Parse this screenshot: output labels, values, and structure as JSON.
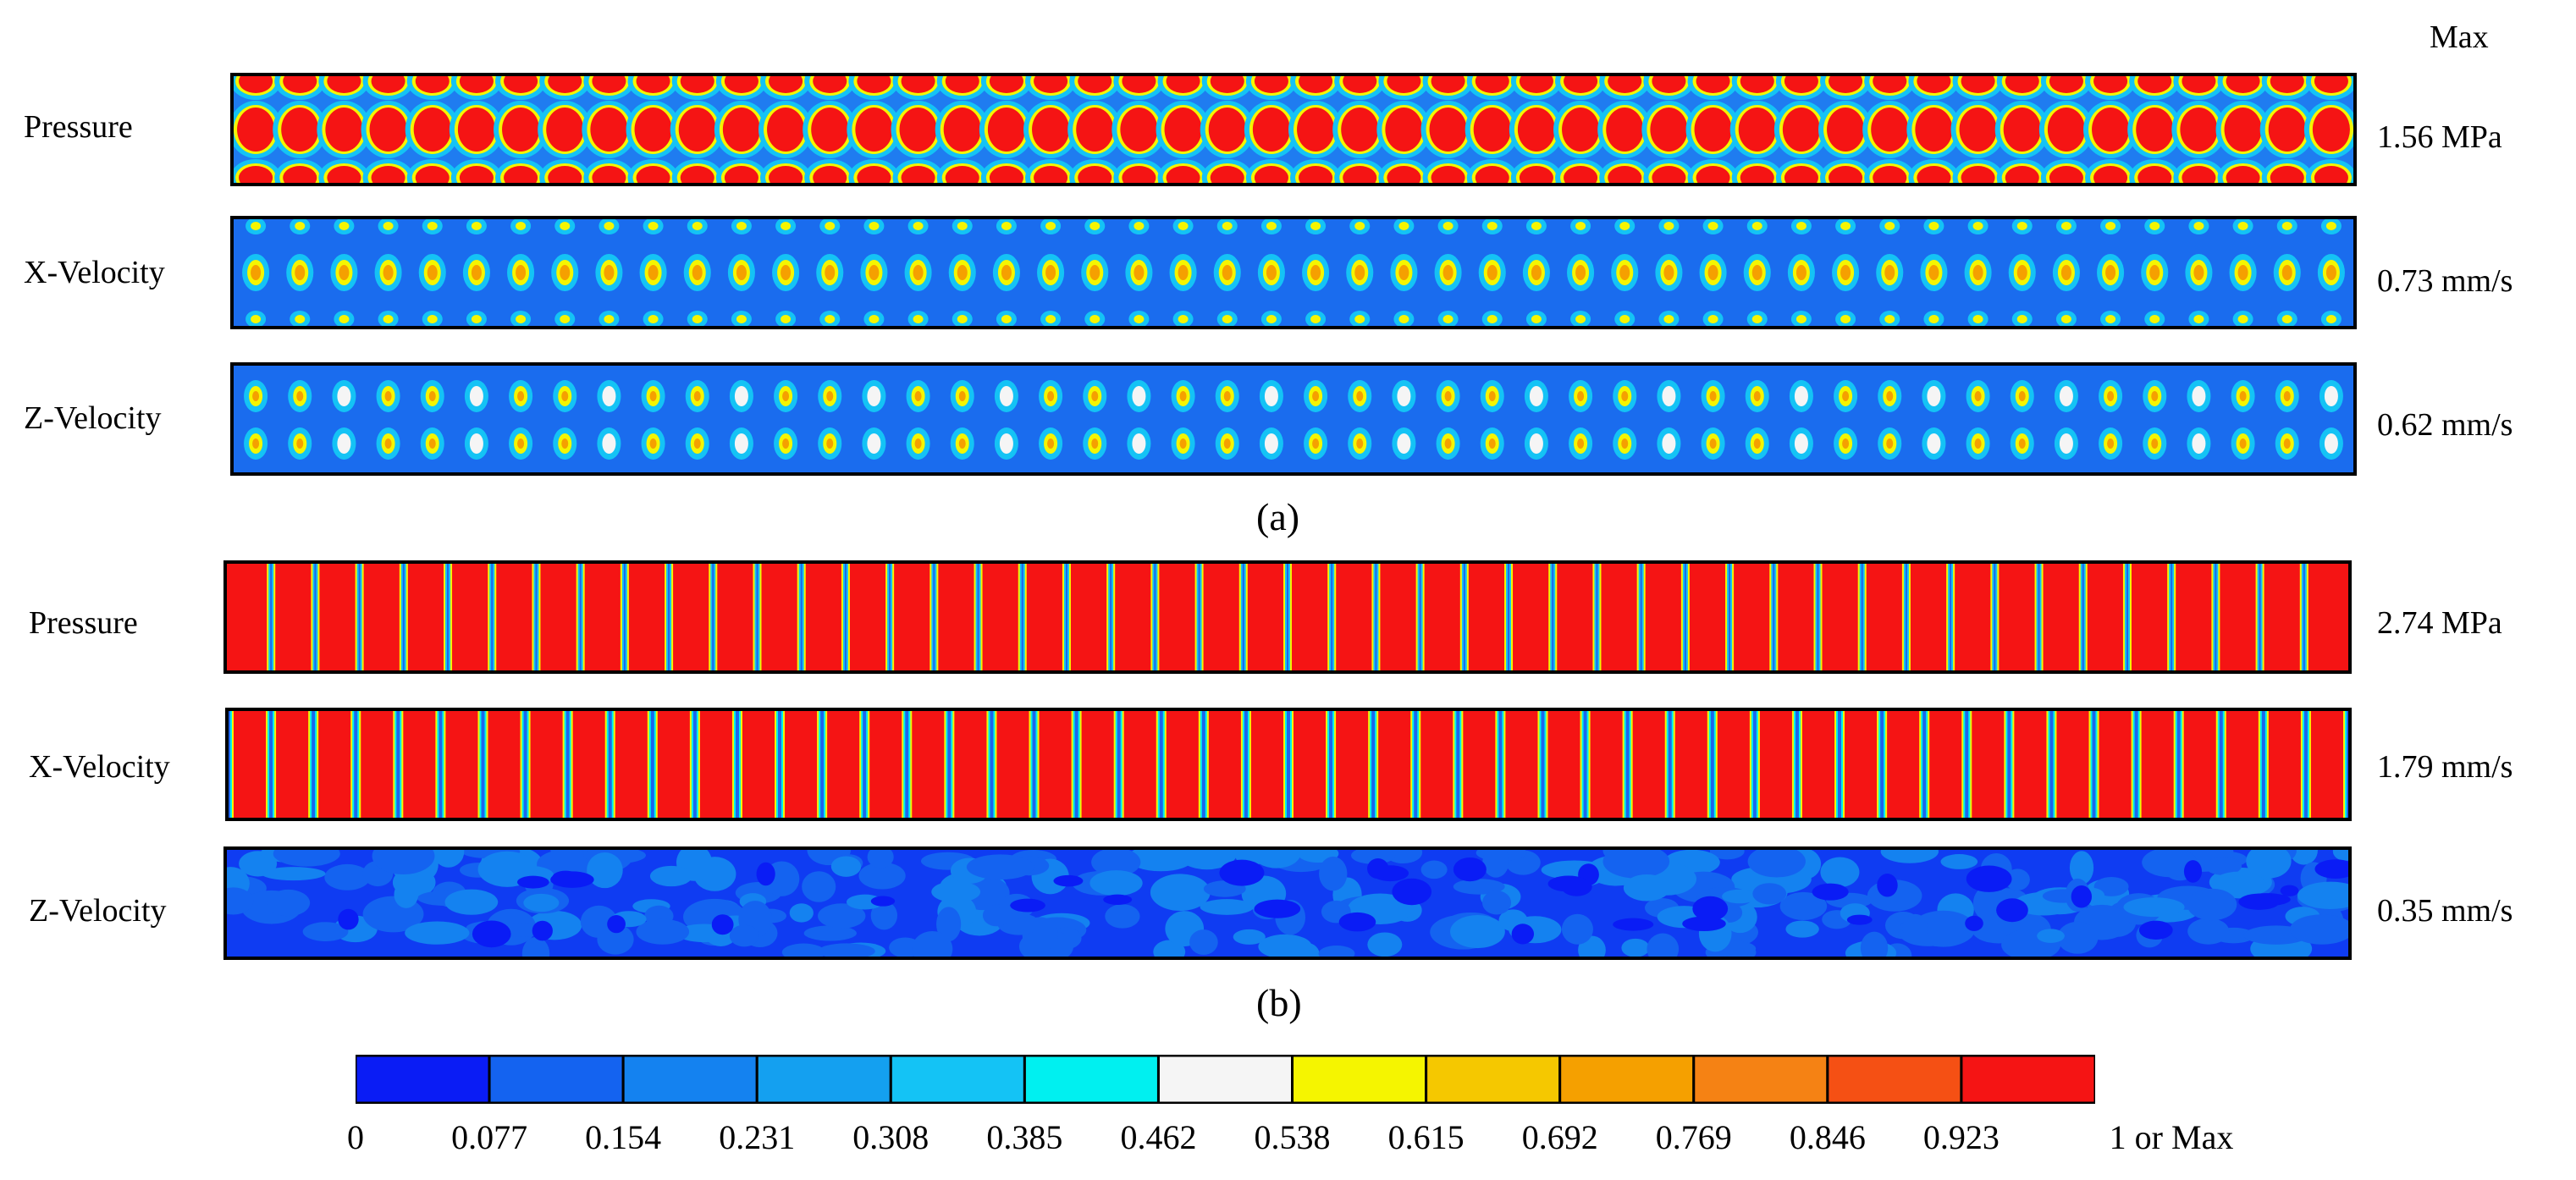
{
  "header": {
    "max_label": "Max"
  },
  "panels": [
    {
      "caption": "(a)",
      "rows": [
        {
          "label": "Pressure",
          "max": "1.56 MPa",
          "kind": "a-pressure"
        },
        {
          "label": "X-Velocity",
          "max": "0.73 mm/s",
          "kind": "a-xvel"
        },
        {
          "label": "Z-Velocity",
          "max": "0.62 mm/s",
          "kind": "a-zvel"
        }
      ]
    },
    {
      "caption": "(b)",
      "rows": [
        {
          "label": "Pressure",
          "max": "2.74 MPa",
          "kind": "b-pressure"
        },
        {
          "label": "X-Velocity",
          "max": "1.79 mm/s",
          "kind": "b-xvel"
        },
        {
          "label": "Z-Velocity",
          "max": "0.35 mm/s",
          "kind": "b-zvel"
        }
      ]
    }
  ],
  "colorbar": {
    "colors": [
      "#0a1cf5",
      "#1463f0",
      "#1482f0",
      "#14a0f0",
      "#14c3f5",
      "#00f0f0",
      "#f5f5f5",
      "#f5f500",
      "#f5c800",
      "#f5a000",
      "#f58214",
      "#f55014",
      "#f51414"
    ],
    "ticks": [
      "0",
      "0.077",
      "0.154",
      "0.231",
      "0.308",
      "0.385",
      "0.462",
      "0.538",
      "0.615",
      "0.692",
      "0.769",
      "0.846",
      "0.923",
      "1 or Max"
    ]
  },
  "field_colors": {
    "background": "#1a66ee",
    "deep": "#0a1cf5",
    "light_blue": "#14c3f5",
    "cyan": "#00f0f0",
    "white": "#f5f5f5",
    "yellow": "#f5f500",
    "orange": "#f5a000",
    "red": "#f51414"
  }
}
